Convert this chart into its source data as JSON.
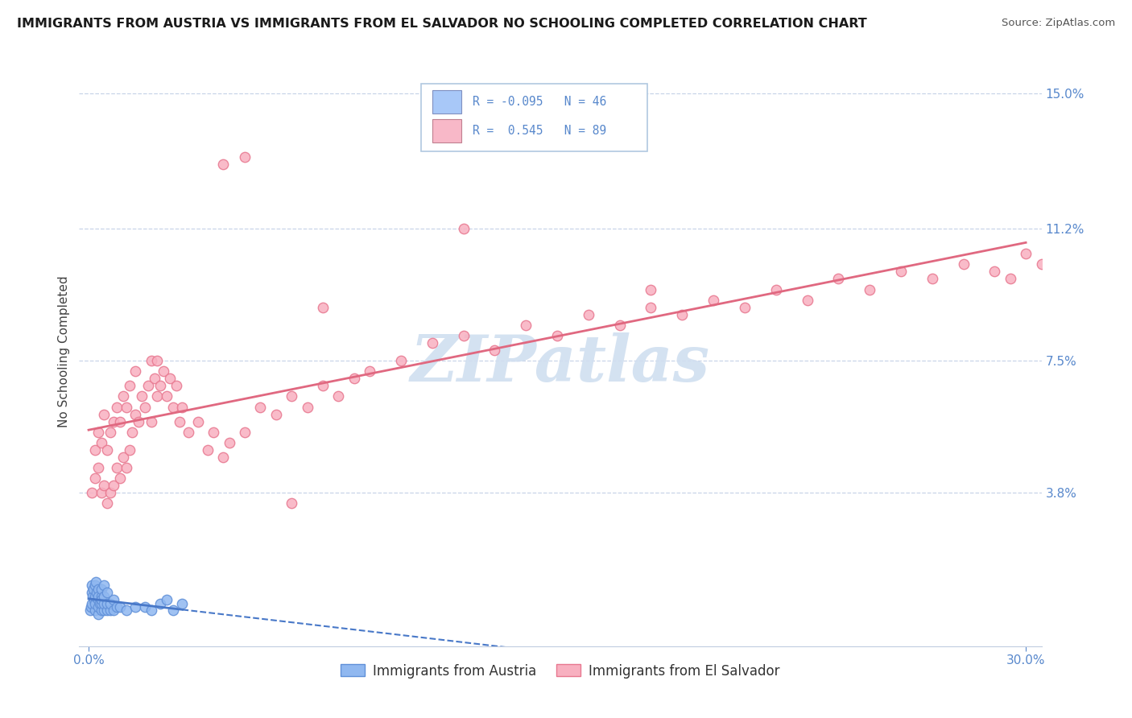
{
  "title": "IMMIGRANTS FROM AUSTRIA VS IMMIGRANTS FROM EL SALVADOR NO SCHOOLING COMPLETED CORRELATION CHART",
  "source": "Source: ZipAtlas.com",
  "ylabel": "No Schooling Completed",
  "xlim": [
    -0.003,
    0.305
  ],
  "ylim": [
    -0.005,
    0.16
  ],
  "ytick_vals": [
    0.038,
    0.075,
    0.112,
    0.15
  ],
  "ytick_labels": [
    "3.8%",
    "7.5%",
    "11.2%",
    "15.0%"
  ],
  "xtick_vals": [
    0.0,
    0.3
  ],
  "xtick_labels": [
    "0.0%",
    "30.0%"
  ],
  "austria_color": "#90b8f0",
  "austria_edge": "#6090d8",
  "salvador_color": "#f8b0c0",
  "salvador_edge": "#e87890",
  "austria_trend_color": "#4878c8",
  "salvador_trend_color": "#e06880",
  "grid_color": "#c8d4e8",
  "tick_color": "#5888cc",
  "legend_box_color": "#b0c8e0",
  "watermark_text": "ZIPatlas",
  "watermark_color": "#d0dff0",
  "austria_R": "-0.095",
  "austria_N": "46",
  "salvador_R": "0.545",
  "salvador_N": "89",
  "austria_legend_color": "#a8c8f8",
  "salvador_legend_color": "#f8b8c8",
  "austria_x": [
    0.0005,
    0.0008,
    0.001,
    0.001,
    0.001,
    0.0012,
    0.0015,
    0.0018,
    0.002,
    0.002,
    0.002,
    0.002,
    0.0022,
    0.0025,
    0.003,
    0.003,
    0.003,
    0.003,
    0.0032,
    0.0035,
    0.004,
    0.004,
    0.004,
    0.004,
    0.0042,
    0.005,
    0.005,
    0.005,
    0.005,
    0.006,
    0.006,
    0.006,
    0.007,
    0.007,
    0.008,
    0.008,
    0.009,
    0.01,
    0.012,
    0.015,
    0.018,
    0.02,
    0.023,
    0.025,
    0.027,
    0.03
  ],
  "austria_y": [
    0.005,
    0.006,
    0.007,
    0.01,
    0.012,
    0.009,
    0.011,
    0.008,
    0.005,
    0.007,
    0.009,
    0.012,
    0.013,
    0.01,
    0.004,
    0.006,
    0.008,
    0.011,
    0.009,
    0.007,
    0.005,
    0.007,
    0.009,
    0.011,
    0.008,
    0.005,
    0.007,
    0.009,
    0.012,
    0.005,
    0.007,
    0.01,
    0.005,
    0.007,
    0.005,
    0.008,
    0.006,
    0.006,
    0.005,
    0.006,
    0.006,
    0.005,
    0.007,
    0.008,
    0.005,
    0.007
  ],
  "salvador_x": [
    0.001,
    0.002,
    0.002,
    0.003,
    0.003,
    0.004,
    0.004,
    0.005,
    0.005,
    0.006,
    0.006,
    0.007,
    0.007,
    0.008,
    0.008,
    0.009,
    0.009,
    0.01,
    0.01,
    0.011,
    0.011,
    0.012,
    0.012,
    0.013,
    0.013,
    0.014,
    0.015,
    0.015,
    0.016,
    0.017,
    0.018,
    0.019,
    0.02,
    0.02,
    0.021,
    0.022,
    0.022,
    0.023,
    0.024,
    0.025,
    0.026,
    0.027,
    0.028,
    0.029,
    0.03,
    0.032,
    0.035,
    0.038,
    0.04,
    0.043,
    0.045,
    0.05,
    0.055,
    0.06,
    0.065,
    0.07,
    0.075,
    0.08,
    0.085,
    0.09,
    0.1,
    0.11,
    0.12,
    0.13,
    0.14,
    0.15,
    0.16,
    0.17,
    0.18,
    0.19,
    0.2,
    0.21,
    0.22,
    0.23,
    0.24,
    0.25,
    0.26,
    0.27,
    0.28,
    0.29,
    0.295,
    0.3,
    0.305,
    0.043,
    0.12,
    0.18,
    0.075,
    0.065,
    0.05
  ],
  "salvador_y": [
    0.038,
    0.042,
    0.05,
    0.045,
    0.055,
    0.038,
    0.052,
    0.04,
    0.06,
    0.035,
    0.05,
    0.038,
    0.055,
    0.04,
    0.058,
    0.045,
    0.062,
    0.042,
    0.058,
    0.048,
    0.065,
    0.045,
    0.062,
    0.05,
    0.068,
    0.055,
    0.06,
    0.072,
    0.058,
    0.065,
    0.062,
    0.068,
    0.058,
    0.075,
    0.07,
    0.065,
    0.075,
    0.068,
    0.072,
    0.065,
    0.07,
    0.062,
    0.068,
    0.058,
    0.062,
    0.055,
    0.058,
    0.05,
    0.055,
    0.048,
    0.052,
    0.055,
    0.062,
    0.06,
    0.065,
    0.062,
    0.068,
    0.065,
    0.07,
    0.072,
    0.075,
    0.08,
    0.082,
    0.078,
    0.085,
    0.082,
    0.088,
    0.085,
    0.09,
    0.088,
    0.092,
    0.09,
    0.095,
    0.092,
    0.098,
    0.095,
    0.1,
    0.098,
    0.102,
    0.1,
    0.098,
    0.105,
    0.102,
    0.13,
    0.112,
    0.095,
    0.09,
    0.035,
    0.132
  ]
}
